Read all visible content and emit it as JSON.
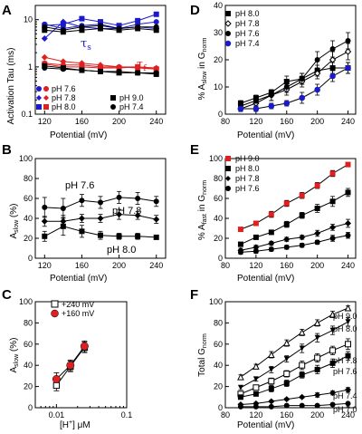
{
  "chart_data": [
    {
      "panel": "A",
      "type": "line",
      "ylog": true,
      "xlabel": "Potential (mV)",
      "ylabel": "Activation Tau (ms)",
      "xlim": [
        110,
        250
      ],
      "ylim": [
        0.1,
        20
      ],
      "xticks": [
        120,
        160,
        200,
        240
      ],
      "yticks": [
        0.1,
        1,
        10
      ],
      "x": [
        120,
        140,
        160,
        180,
        200,
        220,
        240
      ],
      "annotations": [
        {
          "text": "τs",
          "color": "#1a1acc",
          "x": 160,
          "y": 4.5
        },
        {
          "text": "τf",
          "color": "#e02020",
          "x": 220,
          "y": 1.5
        }
      ],
      "legend_left": [
        {
          "label": "pH 7.6",
          "marker": "circle",
          "colors": [
            "#1a1acc",
            "#e02020"
          ]
        },
        {
          "label": "pH 7.8",
          "marker": "diamond",
          "colors": [
            "#1a1acc",
            "#e02020"
          ]
        },
        {
          "label": "pH 8.0",
          "marker": "square",
          "colors": [
            "#1a1acc",
            "#e02020"
          ]
        }
      ],
      "legend_right": [
        {
          "label": "pH 9.0",
          "marker": "square",
          "color": "#000000"
        },
        {
          "label": "pH 7.4",
          "marker": "circle",
          "color": "#000000"
        }
      ],
      "series": [
        {
          "marker": "square",
          "color": "#1a1acc",
          "values": [
            7.5,
            8.0,
            10.5,
            9.0,
            7.5,
            9.5,
            13.0
          ]
        },
        {
          "marker": "circle",
          "color": "#1a1acc",
          "values": [
            8.0,
            6.5,
            7.5,
            8.0,
            6.5,
            8.0,
            9.0
          ]
        },
        {
          "marker": "diamond",
          "color": "#1a1acc",
          "values": [
            4.0,
            9.0,
            7.0,
            6.5,
            6.5,
            7.0,
            6.5
          ]
        },
        {
          "marker": "square",
          "color": "#000000",
          "values": [
            6.0,
            5.5,
            6.0,
            6.5,
            6.0,
            6.5,
            6.0
          ]
        },
        {
          "marker": "circle",
          "color": "#000000",
          "values": [
            7.0,
            6.0,
            7.0,
            7.5,
            6.5,
            7.0,
            7.0
          ]
        },
        {
          "marker": "square",
          "color": "#e02020",
          "values": [
            1.15,
            1.0,
            1.0,
            0.95,
            0.95,
            1.0,
            0.9
          ]
        },
        {
          "marker": "circle",
          "color": "#e02020",
          "values": [
            1.2,
            1.1,
            1.1,
            1.0,
            1.0,
            0.95,
            0.9
          ]
        },
        {
          "marker": "diamond",
          "color": "#e02020",
          "values": [
            1.6,
            1.3,
            1.2,
            1.1,
            1.0,
            1.0,
            0.95
          ]
        },
        {
          "marker": "square",
          "color": "#000000",
          "values": [
            1.05,
            0.95,
            0.85,
            0.8,
            0.75,
            0.75,
            0.7
          ]
        },
        {
          "marker": "circle",
          "color": "#000000",
          "values": [
            0.95,
            0.9,
            0.85,
            0.8,
            0.8,
            0.75,
            0.75
          ]
        }
      ]
    },
    {
      "panel": "B",
      "type": "line",
      "xlabel": "Potential (mV)",
      "ylabel": "A_slow (%)",
      "xlim": [
        110,
        250
      ],
      "ylim": [
        0,
        100
      ],
      "xticks": [
        120,
        160,
        200,
        240
      ],
      "yticks": [
        0,
        20,
        40,
        60,
        80,
        100
      ],
      "x": [
        120,
        140,
        160,
        180,
        200,
        220,
        240
      ],
      "series": [
        {
          "name": "pH 7.6",
          "marker": "circle",
          "values": [
            51,
            50,
            58,
            56,
            61,
            60,
            57
          ],
          "err": [
            10,
            10,
            6,
            6,
            6,
            6,
            5
          ]
        },
        {
          "name": "pH 7.8",
          "marker": "diamond",
          "values": [
            37,
            37,
            40,
            40,
            44,
            43,
            39
          ],
          "err": [
            5,
            6,
            4,
            4,
            5,
            4,
            4
          ]
        },
        {
          "name": "pH 8.0",
          "marker": "square",
          "values": [
            22,
            32,
            27,
            23,
            22,
            22,
            21
          ],
          "err": [
            5,
            9,
            6,
            4,
            3,
            3,
            2
          ]
        }
      ]
    },
    {
      "panel": "C",
      "type": "scatter",
      "xlog": true,
      "xlabel": "[H+] μM",
      "ylabel": "A_slow (%)",
      "xlim": [
        0.005,
        0.1
      ],
      "ylim": [
        0,
        100
      ],
      "xticks": [
        0.01,
        0.1
      ],
      "yticks": [
        0,
        20,
        40,
        60,
        80,
        100
      ],
      "series": [
        {
          "name": "+240 mV",
          "marker": "open-square",
          "x": [
            0.01,
            0.0158,
            0.0251
          ],
          "values": [
            21,
            39,
            57
          ],
          "err": [
            5,
            5,
            5
          ]
        },
        {
          "name": "+160 mV",
          "marker": "red-circle",
          "x": [
            0.01,
            0.0158,
            0.0251
          ],
          "values": [
            27,
            40,
            58
          ],
          "err": [
            6,
            5,
            5
          ]
        }
      ]
    },
    {
      "panel": "D",
      "type": "line",
      "xlabel": "Potential (mV)",
      "ylabel": "% A_slow in G_norm",
      "xlim": [
        80,
        250
      ],
      "ylim": [
        0,
        40
      ],
      "xticks": [
        80,
        120,
        160,
        200,
        240
      ],
      "yticks": [
        0,
        10,
        20,
        30,
        40
      ],
      "x": [
        100,
        120,
        140,
        160,
        180,
        200,
        220,
        240
      ],
      "series": [
        {
          "name": "pH 8.0",
          "marker": "square",
          "values": [
            4,
            6,
            8,
            12,
            13,
            16,
            17,
            17
          ],
          "err": [
            1,
            1,
            1,
            2,
            2,
            2,
            2,
            2
          ]
        },
        {
          "name": "pH 7.8",
          "marker": "open-diamond",
          "values": [
            2,
            4,
            7,
            9,
            12,
            15,
            20,
            23
          ],
          "err": [
            1,
            1,
            2,
            2,
            2,
            2,
            3,
            3
          ]
        },
        {
          "name": "pH 7.6",
          "marker": "circle",
          "values": [
            3,
            5,
            7,
            10,
            13,
            20,
            24,
            27
          ],
          "err": [
            1,
            1,
            2,
            2,
            2,
            3,
            3,
            3
          ]
        },
        {
          "name": "pH 7.4",
          "marker": "blue-circle",
          "values": [
            2,
            2,
            3,
            4,
            6,
            9,
            14,
            17
          ],
          "err": [
            1,
            1,
            1,
            1,
            2,
            2,
            2,
            2
          ]
        }
      ]
    },
    {
      "panel": "E",
      "type": "line",
      "xlabel": "Potential (mV)",
      "ylabel": "% A_fast in G_norm",
      "xlim": [
        80,
        250
      ],
      "ylim": [
        0,
        100
      ],
      "xticks": [
        80,
        120,
        160,
        200,
        240
      ],
      "yticks": [
        0,
        20,
        40,
        60,
        80,
        100
      ],
      "x": [
        100,
        120,
        140,
        160,
        180,
        200,
        220,
        240
      ],
      "series": [
        {
          "name": "pH 9.0",
          "marker": "red-square",
          "values": [
            29,
            35,
            44,
            55,
            63,
            73,
            85,
            94
          ],
          "err": [
            2,
            2,
            3,
            3,
            3,
            3,
            3,
            2
          ]
        },
        {
          "name": "pH 8.0",
          "marker": "square",
          "values": [
            14,
            21,
            26,
            34,
            43,
            50,
            57,
            66
          ],
          "err": [
            2,
            2,
            2,
            3,
            3,
            4,
            5,
            4
          ]
        },
        {
          "name": "pH 7.8",
          "marker": "diamond",
          "values": [
            8,
            11,
            15,
            19,
            21,
            25,
            31,
            35
          ],
          "err": [
            2,
            2,
            2,
            2,
            2,
            3,
            3,
            4
          ]
        },
        {
          "name": "pH 7.6",
          "marker": "circle",
          "values": [
            6,
            7,
            9,
            11,
            13,
            16,
            20,
            23
          ],
          "err": [
            2,
            2,
            2,
            2,
            2,
            2,
            3,
            3
          ]
        }
      ]
    },
    {
      "panel": "F",
      "type": "line",
      "xlabel": "Potential (mV)",
      "ylabel": "Total G_norm",
      "xlim": [
        80,
        250
      ],
      "ylim": [
        0,
        100
      ],
      "xticks": [
        80,
        120,
        160,
        200,
        240
      ],
      "yticks": [
        0,
        20,
        40,
        60,
        80,
        100
      ],
      "x": [
        100,
        120,
        140,
        160,
        180,
        200,
        220,
        240
      ],
      "series": [
        {
          "name": "pH 9.0",
          "marker": "open-triangle",
          "values": [
            29,
            39,
            50,
            61,
            71,
            80,
            88,
            94
          ],
          "err": [
            2,
            2,
            3,
            3,
            3,
            3,
            3,
            2
          ]
        },
        {
          "name": "pH 8.0",
          "marker": "down-triangle",
          "values": [
            19,
            27,
            36,
            46,
            56,
            66,
            73,
            81
          ],
          "err": [
            2,
            2,
            3,
            3,
            4,
            4,
            4,
            4
          ]
        },
        {
          "name": "pH 7.8",
          "marker": "open-square",
          "values": [
            13,
            19,
            25,
            32,
            40,
            47,
            54,
            60
          ],
          "err": [
            2,
            2,
            3,
            3,
            4,
            4,
            4,
            5
          ]
        },
        {
          "name": "pH 7.6",
          "marker": "square",
          "values": [
            10,
            13,
            18,
            23,
            31,
            36,
            42,
            49
          ],
          "err": [
            2,
            2,
            3,
            3,
            3,
            4,
            4,
            4
          ]
        },
        {
          "name": "pH 7.4",
          "marker": "diamond",
          "values": [
            3,
            4,
            6,
            8,
            10,
            12,
            14,
            17
          ],
          "err": [
            1,
            1,
            1,
            1,
            1,
            2,
            2,
            2
          ]
        },
        {
          "name": "pH 7.0",
          "marker": "circle",
          "values": [
            1,
            1,
            1,
            2,
            2,
            2,
            3,
            4
          ],
          "err": [
            0.5,
            0.5,
            0.5,
            0.5,
            0.5,
            0.5,
            0.5,
            0.5
          ]
        }
      ]
    }
  ],
  "labels": {
    "a": "A",
    "b": "B",
    "c": "C",
    "d": "D",
    "e": "E",
    "f": "F",
    "a_legend_left": [
      "pH 7.6",
      "pH 7.8",
      "pH 8.0"
    ],
    "a_legend_right": [
      "pH 9.0",
      "pH 7.4"
    ],
    "a_tau_s": "τ",
    "a_tau_s_sub": "s",
    "a_tau_f": "τ",
    "a_tau_f_sub": "f",
    "b_series": [
      "pH 7.6",
      "pH 7.8",
      "pH 8.0"
    ],
    "c_legend": [
      "+240 mV",
      "+160 mV"
    ],
    "d_legend": [
      "pH 8.0",
      "pH 7.8",
      "pH 7.6",
      "pH 7.4"
    ],
    "e_legend": [
      "pH 9.0",
      "pH 8.0",
      "pH 7.8",
      "pH 7.6"
    ],
    "f_series": [
      "pH 9.0",
      "pH 8.0",
      "pH 7.8",
      "pH 7.6",
      "pH 7.4",
      "pH 7.0"
    ],
    "potential": "Potential (mV)",
    "a_ylabel": "Activation Tau (ms)",
    "a_slow_main": "A",
    "a_slow_sub": "slow",
    "a_slow_tail": " (%)",
    "c_xlabel": "[H",
    "c_xlabel_sup": "+",
    "c_xlabel_tail": "]  μM",
    "d_ylabel": [
      "% A",
      "slow",
      " in G",
      "norm"
    ],
    "e_ylabel": [
      "% A",
      "fast",
      " in G",
      "norm"
    ],
    "f_ylabel": [
      "Total G",
      "norm"
    ]
  },
  "colors": {
    "blue": "#1a1acc",
    "red": "#e02020",
    "black": "#000000"
  }
}
